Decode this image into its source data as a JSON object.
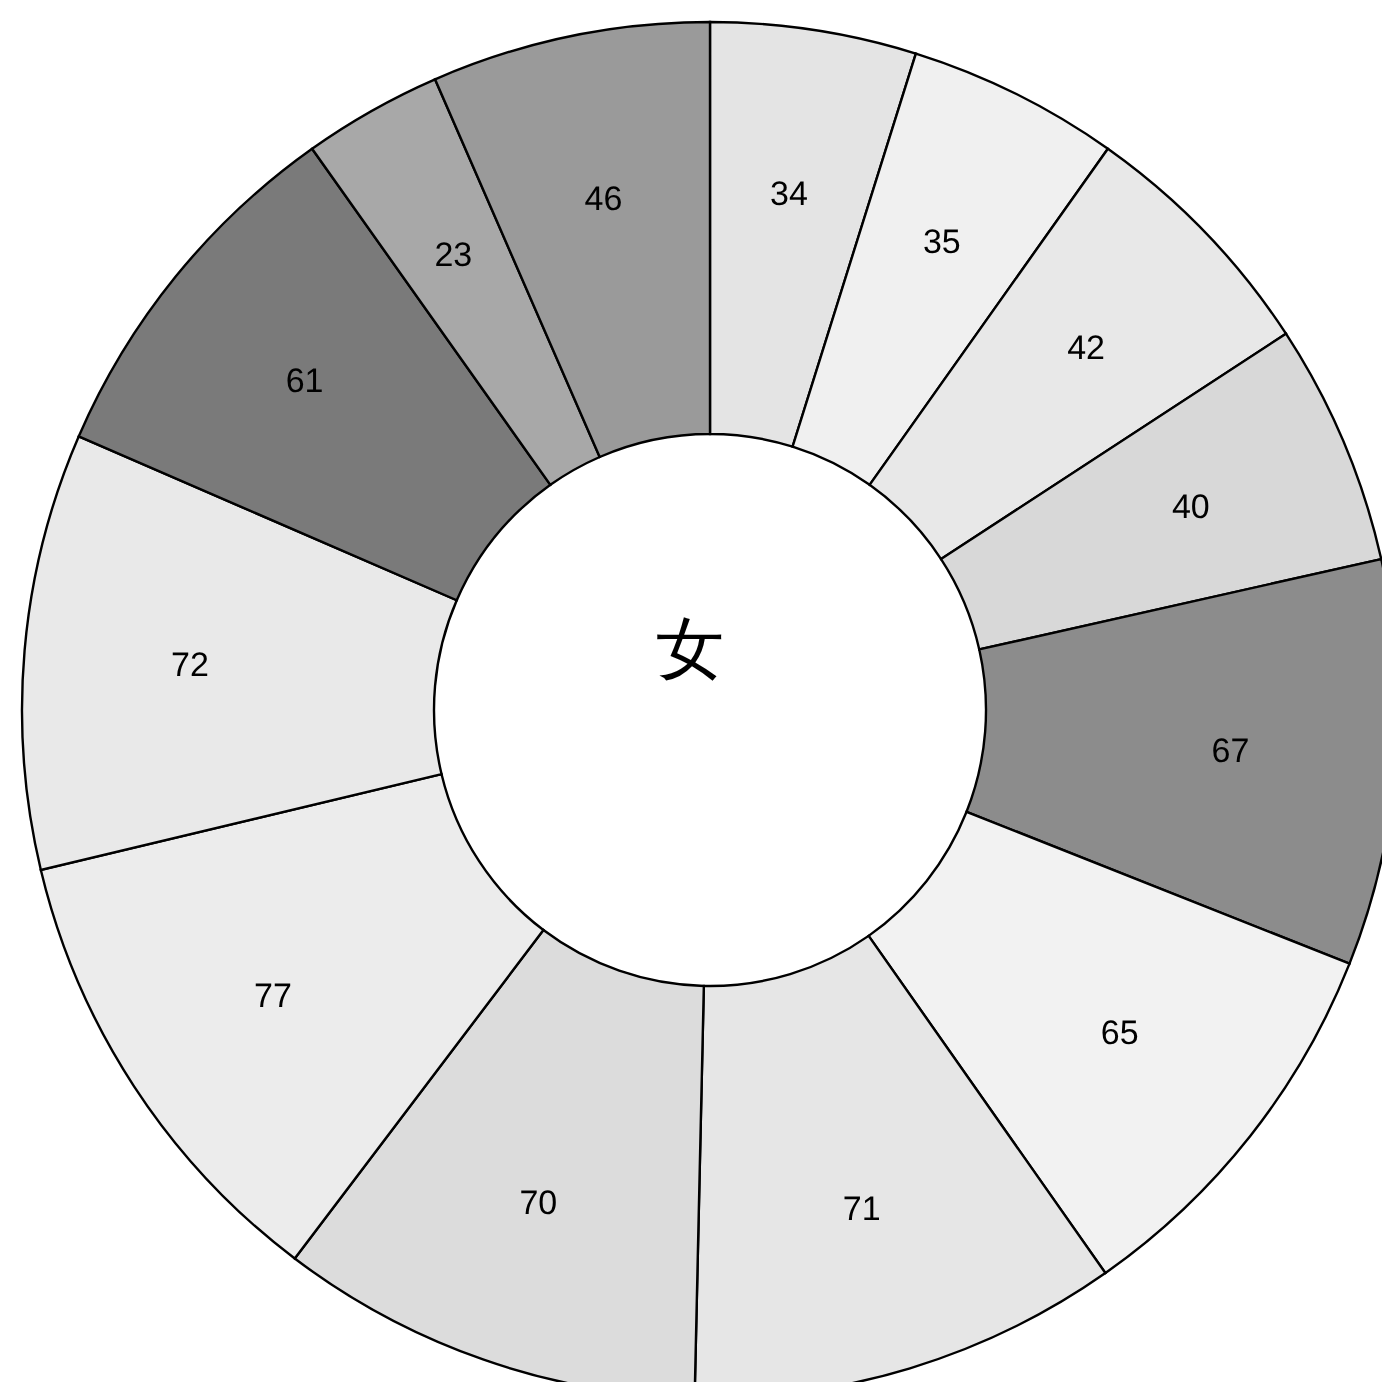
{
  "chart_data": {
    "type": "donut",
    "title": "女",
    "categories": [
      null,
      null,
      null,
      null,
      null,
      null,
      null,
      null,
      null,
      null,
      null,
      null,
      null
    ],
    "values": [
      34,
      35,
      42,
      40,
      67,
      65,
      71,
      70,
      77,
      72,
      61,
      23,
      46
    ],
    "colors": [
      "#e4e4e4",
      "#f0f0f0",
      "#e8e8e8",
      "#d8d8d8",
      "#8c8c8c",
      "#f2f2f2",
      "#e6e6e6",
      "#dcdcdc",
      "#ececec",
      "#e9e9e9",
      "#7a7a7a",
      "#a8a8a8",
      "#9a9a9a"
    ],
    "data_labels": true
  }
}
